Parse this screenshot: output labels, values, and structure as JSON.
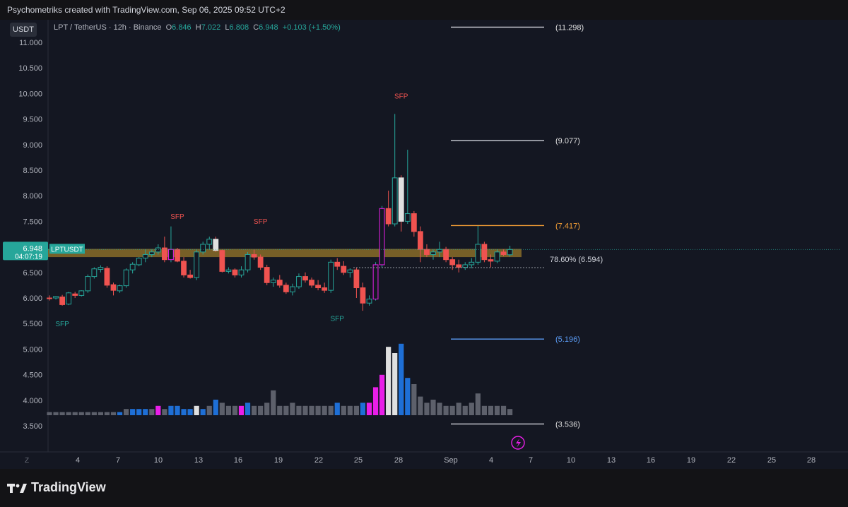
{
  "banner": {
    "text": "Psychometriks created with TradingView.com, Sep 06, 2025 09:52 UTC+2"
  },
  "header": {
    "currency_badge": "USDT",
    "symbol": "LPT / TetherUS · 12h · Binance",
    "o_label": "O",
    "o_value": "6.846",
    "h_label": "H",
    "h_value": "7.022",
    "l_label": "L",
    "l_value": "6.808",
    "c_label": "C",
    "c_value": "6.948",
    "change": "+0.103 (+1.50%)"
  },
  "price_tag": {
    "ticker": "LPTUSDT",
    "price": "6.948",
    "countdown": "04:07:19"
  },
  "footer": {
    "logo_text": "TradingView",
    "z_label": "Z",
    "lightning_icon": "lightning-icon"
  },
  "colors": {
    "bull": "#26a69a",
    "bear": "#ef5350",
    "magenta": "#e91ee8",
    "white_bar": "#e0e0e0",
    "blue_bar": "#1e6fd6",
    "grey_vol": "#5d606b",
    "zone": "#c89a2b",
    "fib_orange": "#f7a035",
    "fib_blue": "#5b9cf6",
    "fib_white": "#d1d4dc"
  },
  "chart_data": {
    "type": "candlestick",
    "title": "LPT / TetherUS · 12h · Binance",
    "yaxis": {
      "ticks": [
        "11.000",
        "10.500",
        "10.000",
        "9.500",
        "9.000",
        "8.500",
        "8.000",
        "7.500",
        "7.000",
        "6.500",
        "6.000",
        "5.500",
        "5.000",
        "4.500",
        "4.000",
        "3.500"
      ],
      "range": [
        3.35,
        11.35
      ]
    },
    "xaxis": {
      "ticks": [
        "4",
        "7",
        "10",
        "13",
        "16",
        "19",
        "22",
        "25",
        "28",
        "Sep",
        "4",
        "7",
        "10",
        "13",
        "16",
        "19",
        "22",
        "25",
        "28"
      ]
    },
    "candles": [
      [
        6.0,
        6.05,
        5.95,
        5.99
      ],
      [
        6.0,
        6.04,
        5.97,
        6.03
      ],
      [
        6.02,
        6.06,
        5.85,
        5.87
      ],
      [
        5.88,
        6.12,
        5.86,
        6.1
      ],
      [
        6.08,
        6.12,
        6.0,
        6.05
      ],
      [
        6.05,
        6.15,
        6.03,
        6.14
      ],
      [
        6.14,
        6.46,
        6.1,
        6.42
      ],
      [
        6.42,
        6.6,
        6.38,
        6.57
      ],
      [
        6.56,
        6.64,
        6.5,
        6.6
      ],
      [
        6.58,
        6.62,
        6.2,
        6.25
      ],
      [
        6.26,
        6.3,
        6.05,
        6.15
      ],
      [
        6.14,
        6.26,
        6.1,
        6.24
      ],
      [
        6.24,
        6.58,
        6.2,
        6.55
      ],
      [
        6.55,
        6.7,
        6.48,
        6.66
      ],
      [
        6.65,
        6.8,
        6.62,
        6.78
      ],
      [
        6.78,
        6.95,
        6.7,
        6.85
      ],
      [
        6.85,
        6.95,
        6.8,
        6.9
      ],
      [
        6.9,
        7.05,
        6.85,
        6.98
      ],
      [
        6.98,
        7.2,
        6.7,
        6.75
      ],
      [
        6.75,
        7.4,
        6.7,
        6.95
      ],
      [
        6.95,
        6.98,
        6.7,
        6.72
      ],
      [
        6.72,
        6.8,
        6.4,
        6.45
      ],
      [
        6.45,
        6.55,
        6.38,
        6.4
      ],
      [
        6.4,
        6.95,
        6.35,
        6.9
      ],
      [
        6.9,
        7.1,
        6.85,
        7.05
      ],
      [
        7.05,
        7.2,
        6.95,
        7.15
      ],
      [
        7.15,
        7.2,
        6.9,
        6.93
      ],
      [
        6.93,
        6.95,
        6.5,
        6.52
      ],
      [
        6.52,
        6.6,
        6.48,
        6.55
      ],
      [
        6.55,
        6.58,
        6.4,
        6.45
      ],
      [
        6.45,
        6.62,
        6.4,
        6.55
      ],
      [
        6.55,
        6.9,
        6.5,
        6.85
      ],
      [
        6.85,
        6.95,
        6.75,
        6.8
      ],
      [
        6.8,
        6.85,
        6.55,
        6.6
      ],
      [
        6.6,
        6.65,
        6.25,
        6.3
      ],
      [
        6.3,
        6.4,
        6.22,
        6.35
      ],
      [
        6.35,
        6.45,
        6.2,
        6.25
      ],
      [
        6.25,
        6.3,
        6.08,
        6.12
      ],
      [
        6.12,
        6.28,
        6.05,
        6.22
      ],
      [
        6.22,
        6.48,
        6.18,
        6.42
      ],
      [
        6.42,
        6.5,
        6.3,
        6.35
      ],
      [
        6.35,
        6.4,
        6.2,
        6.25
      ],
      [
        6.25,
        6.35,
        6.15,
        6.2
      ],
      [
        6.2,
        6.3,
        6.1,
        6.15
      ],
      [
        6.15,
        6.75,
        6.1,
        6.7
      ],
      [
        6.7,
        6.78,
        6.55,
        6.62
      ],
      [
        6.62,
        6.72,
        6.45,
        6.5
      ],
      [
        6.5,
        6.58,
        6.4,
        6.55
      ],
      [
        6.55,
        6.6,
        6.0,
        6.2
      ],
      [
        6.2,
        6.3,
        5.75,
        5.9
      ],
      [
        5.9,
        6.05,
        5.85,
        5.98
      ],
      [
        5.98,
        6.7,
        5.95,
        6.65
      ],
      [
        6.65,
        7.8,
        6.6,
        7.75
      ],
      [
        7.75,
        8.1,
        7.4,
        7.45
      ],
      [
        7.45,
        9.6,
        7.4,
        8.35
      ],
      [
        8.35,
        8.4,
        7.3,
        7.5
      ],
      [
        7.5,
        8.9,
        7.45,
        7.65
      ],
      [
        7.65,
        7.7,
        7.2,
        7.3
      ],
      [
        7.3,
        7.4,
        6.7,
        6.95
      ],
      [
        6.95,
        7.05,
        6.8,
        6.85
      ],
      [
        6.85,
        6.95,
        6.75,
        6.9
      ],
      [
        6.9,
        7.1,
        6.8,
        6.95
      ],
      [
        6.95,
        7.0,
        6.7,
        6.75
      ],
      [
        6.75,
        6.8,
        6.55,
        6.65
      ],
      [
        6.65,
        6.75,
        6.5,
        6.6
      ],
      [
        6.6,
        6.7,
        6.55,
        6.65
      ],
      [
        6.65,
        6.78,
        6.58,
        6.7
      ],
      [
        6.7,
        7.42,
        6.65,
        7.05
      ],
      [
        7.05,
        7.1,
        6.7,
        6.75
      ],
      [
        6.75,
        6.85,
        6.6,
        6.72
      ],
      [
        6.72,
        6.95,
        6.68,
        6.9
      ],
      [
        6.9,
        6.95,
        6.82,
        6.85
      ],
      [
        6.846,
        7.022,
        6.808,
        6.948
      ]
    ],
    "volume": [
      1,
      1,
      1,
      1,
      1,
      1,
      1,
      1,
      1,
      1,
      1,
      1,
      2,
      2,
      2,
      2,
      2,
      3,
      2,
      3,
      3,
      2,
      2,
      3,
      2,
      3,
      5,
      4,
      3,
      3,
      3,
      4,
      3,
      3,
      4,
      8,
      3,
      3,
      4,
      3,
      3,
      3,
      3,
      3,
      3,
      4,
      3,
      3,
      3,
      4,
      4,
      9,
      13,
      22,
      20,
      23,
      12,
      10,
      6,
      4,
      5,
      4,
      3,
      3,
      4,
      3,
      4,
      7,
      3,
      3,
      3,
      3,
      2
    ],
    "volume_colors": [
      "g",
      "g",
      "g",
      "g",
      "g",
      "g",
      "g",
      "g",
      "g",
      "g",
      "g",
      "b",
      "g",
      "b",
      "b",
      "b",
      "g",
      "m",
      "g",
      "b",
      "b",
      "b",
      "b",
      "w",
      "b",
      "g",
      "b",
      "g",
      "g",
      "g",
      "m",
      "b",
      "g",
      "g",
      "g",
      "g",
      "g",
      "g",
      "g",
      "g",
      "g",
      "g",
      "g",
      "g",
      "g",
      "b",
      "g",
      "g",
      "g",
      "b",
      "m",
      "m",
      "m",
      "w",
      "w",
      "b",
      "b",
      "g",
      "g",
      "g",
      "g",
      "g",
      "g",
      "g",
      "g",
      "g",
      "g",
      "g",
      "g",
      "g",
      "g",
      "g",
      "g"
    ],
    "fib_levels": [
      {
        "label": "(11.298)",
        "value": 11.298,
        "color": "white"
      },
      {
        "label": "(9.077)",
        "value": 9.077,
        "color": "white"
      },
      {
        "label": "(7.417)",
        "value": 7.417,
        "color": "orange"
      },
      {
        "label": "78.60% (6.594)",
        "value": 6.594,
        "color": "white"
      },
      {
        "label": "(5.196)",
        "value": 5.196,
        "color": "blue"
      },
      {
        "label": "(3.536)",
        "value": 3.536,
        "color": "white"
      }
    ],
    "sfp_labels": [
      {
        "text": "SFP",
        "color": "red",
        "x_index": 20,
        "value": 7.55
      },
      {
        "text": "SFP",
        "color": "red",
        "x_index": 33,
        "value": 7.45
      },
      {
        "text": "SFP",
        "color": "red",
        "x_index": 55,
        "value": 9.9
      },
      {
        "text": "SFP",
        "color": "green",
        "x_index": 2,
        "value": 5.45
      },
      {
        "text": "SFP",
        "color": "green",
        "x_index": 45,
        "value": 5.55
      }
    ],
    "zone": {
      "low": 6.8,
      "high": 6.96
    }
  }
}
